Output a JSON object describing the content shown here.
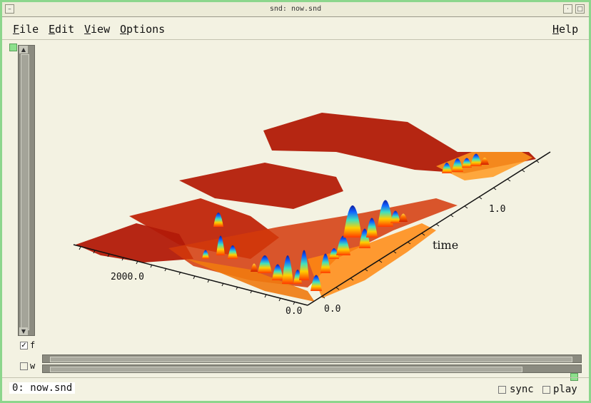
{
  "window": {
    "title": "snd: now.snd"
  },
  "menubar": {
    "items": [
      {
        "label": "File"
      },
      {
        "label": "Edit"
      },
      {
        "label": "View"
      },
      {
        "label": "Options"
      }
    ],
    "help": "Help"
  },
  "channel": {
    "f_label": "f",
    "w_label": "w",
    "f_checked": true,
    "w_checked": false
  },
  "status": {
    "text": "0: now.snd"
  },
  "controls": {
    "sync_label": "sync",
    "play_label": "play"
  },
  "chart_data": {
    "type": "spectrogram-3d",
    "freq_ticks": [
      "2000.0",
      "0.0"
    ],
    "time_ticks": [
      "0.0",
      "1.0"
    ],
    "time_label": "time"
  }
}
